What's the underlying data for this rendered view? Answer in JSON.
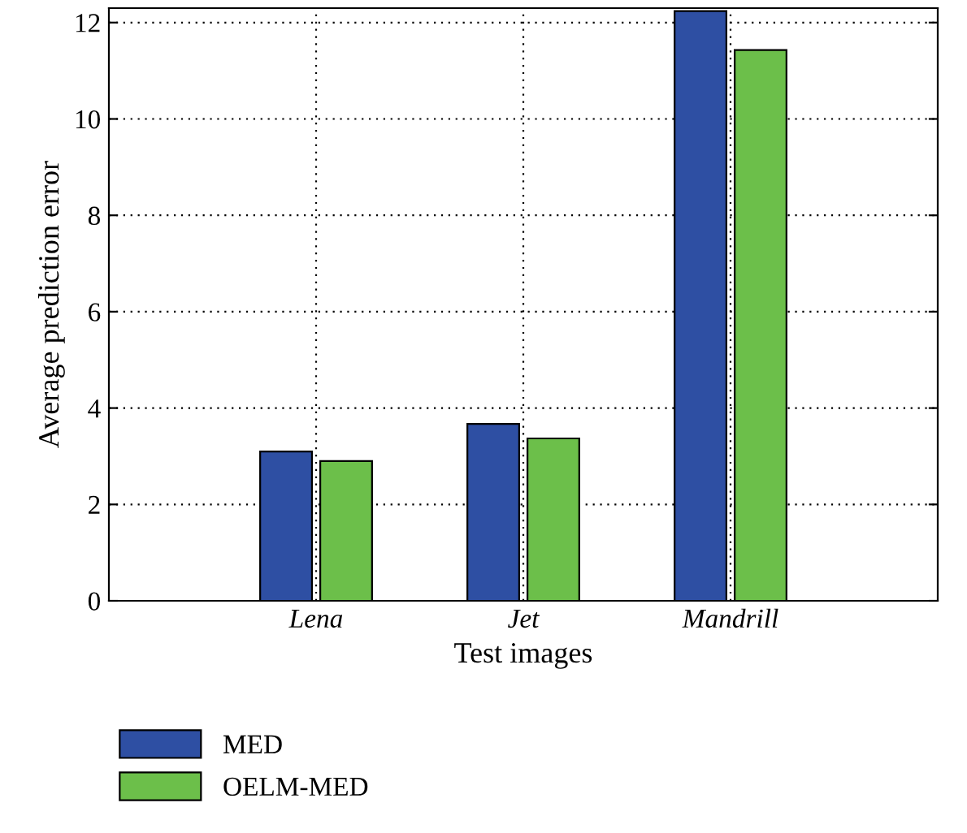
{
  "chart_data": {
    "type": "bar",
    "xlabel": "Test images",
    "ylabel": "Average prediction error",
    "categories": [
      "Lena",
      "Jet",
      "Mandrill"
    ],
    "series": [
      {
        "name": "MED",
        "color": "#2e4fa3",
        "values": [
          3.1,
          3.67,
          12.24
        ]
      },
      {
        "name": "OELM-MED",
        "color": "#6cbf4a",
        "values": [
          2.9,
          3.37,
          11.43
        ]
      }
    ],
    "ylim": [
      0,
      12.3
    ],
    "yticks": [
      0,
      2,
      4,
      6,
      8,
      10,
      12
    ],
    "grid": true,
    "legend": "bottom"
  }
}
